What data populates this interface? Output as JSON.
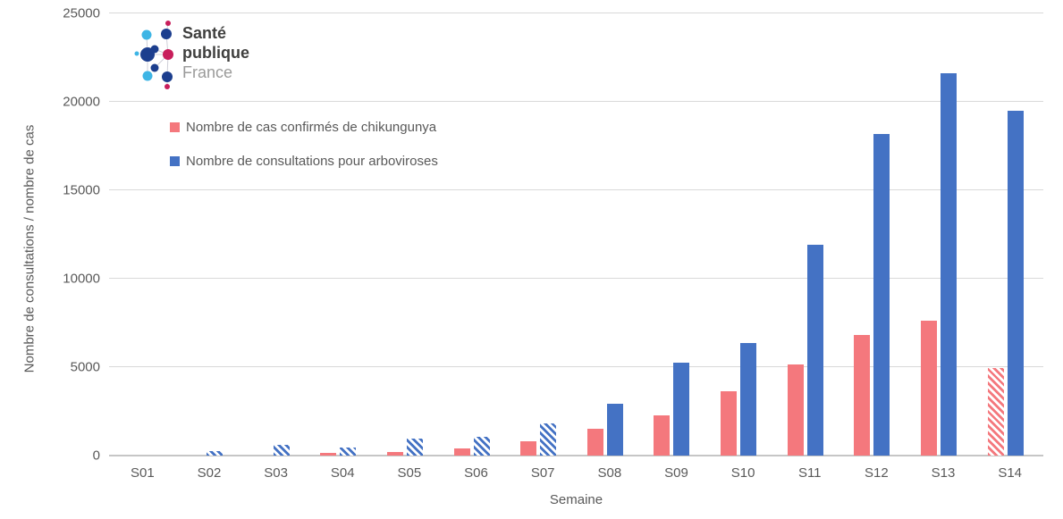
{
  "colors": {
    "pink": "#F4787D",
    "blue": "#4472C4",
    "grid": "#D9D9D9",
    "axis": "#C6C6C6",
    "text": "#595959"
  },
  "logo": {
    "line1": "Santé",
    "line2": "publique",
    "line3": "France",
    "colors": {
      "navy": "#1C3E8E",
      "lightblue": "#3EB5E5",
      "crimson": "#C81E5B",
      "dark_text": "#3F3F3E",
      "light_text": "#9B9B9A",
      "link_line": "#CFCFD8"
    }
  },
  "chart_data": {
    "type": "bar",
    "title": "",
    "xlabel": "Semaine",
    "ylabel": "Nombre de consultations / nombre de cas",
    "ylim": [
      0,
      25000
    ],
    "y_ticks": [
      0,
      5000,
      10000,
      15000,
      20000,
      25000
    ],
    "grid": true,
    "legend_position": "top-left",
    "categories": [
      "S01",
      "S02",
      "S03",
      "S04",
      "S05",
      "S06",
      "S07",
      "S08",
      "S09",
      "S10",
      "S11",
      "S12",
      "S13",
      "S14"
    ],
    "series": [
      {
        "name": "Nombre de cas confirmés de chikungunya",
        "color_key": "pink",
        "values": [
          0,
          0,
          0,
          150,
          200,
          400,
          800,
          1500,
          2250,
          3650,
          5150,
          6800,
          7650,
          4950
        ],
        "hatched": [
          false,
          false,
          false,
          false,
          false,
          false,
          false,
          false,
          false,
          false,
          false,
          false,
          false,
          true
        ]
      },
      {
        "name": "Nombre de consultations pour arboviroses",
        "color_key": "blue",
        "values": [
          0,
          250,
          600,
          450,
          950,
          1050,
          1800,
          2950,
          5250,
          6350,
          11900,
          18200,
          21600,
          19500
        ],
        "hatched": [
          false,
          true,
          true,
          true,
          true,
          true,
          true,
          false,
          false,
          false,
          false,
          false,
          false,
          false
        ]
      }
    ]
  }
}
